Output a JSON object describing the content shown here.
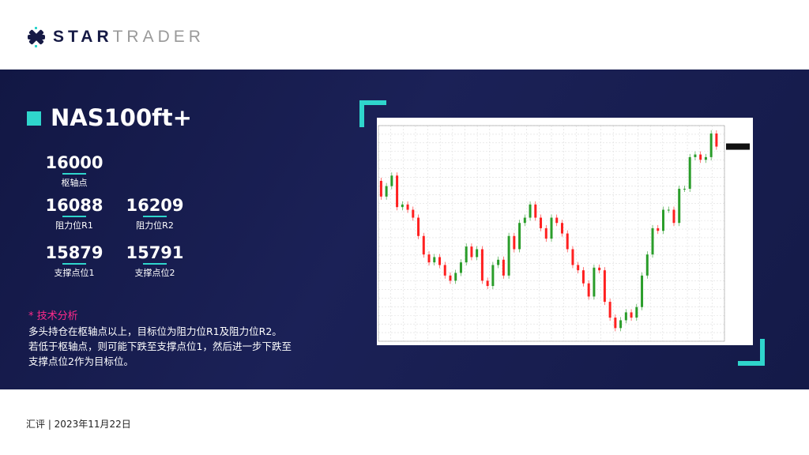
{
  "brand": {
    "bold": "STAR",
    "light": "TRADER"
  },
  "symbol": "NAS100ft+",
  "levels": {
    "pivot": {
      "value": "16000",
      "label": "枢轴点"
    },
    "r1": {
      "value": "16088",
      "label": "阻力位R1"
    },
    "r2": {
      "value": "16209",
      "label": "阻力位R2"
    },
    "s1": {
      "value": "15879",
      "label": "支撑点位1"
    },
    "s2": {
      "value": "15791",
      "label": "支撑点位2"
    }
  },
  "analysis": {
    "heading": "* 技术分析",
    "lines": [
      "多头持仓在枢轴点以上，目标位为阻力位R1及阻力位R2。",
      "若低于枢轴点，则可能下跌至支撑点位1，然后进一步下跌至",
      "支撑点位2作为目标位。"
    ]
  },
  "footer": "汇评 | 2023年11月22日",
  "colors": {
    "accent": "#2fd5cc",
    "band": "#161b4a",
    "up": "#2a9d2a",
    "down": "#ff2020",
    "highlight": "#ff2a8a"
  },
  "chart_data": {
    "type": "candlestick",
    "grid": true,
    "ylim": [
      14057,
      16184
    ],
    "closes": [
      15639,
      15484,
      15587,
      15691,
      15380,
      15406,
      15354,
      15276,
      15095,
      14913,
      14835,
      14887,
      14809,
      14705,
      14654,
      14731,
      14835,
      14991,
      14887,
      14965,
      14654,
      14602,
      14809,
      14861,
      14705,
      15095,
      14965,
      15224,
      15276,
      15406,
      15276,
      15172,
      15069,
      15276,
      15224,
      15120,
      14965,
      14809,
      14757,
      14628,
      14498,
      14783,
      14757,
      14446,
      14290,
      14187,
      14264,
      14342,
      14290,
      14394,
      14705,
      14913,
      15172,
      15146,
      15354,
      15354,
      15224,
      15561,
      15561,
      15873,
      15899,
      15847,
      15873,
      16106,
      15977
    ]
  }
}
